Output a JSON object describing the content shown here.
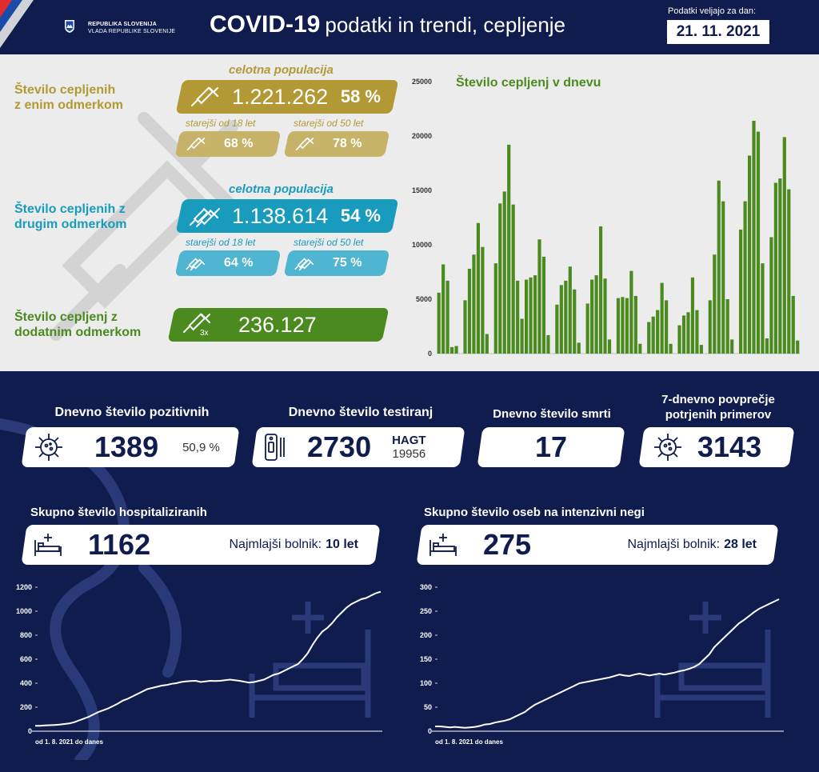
{
  "header": {
    "gov_line1": "REPUBLIKA SLOVENIJA",
    "gov_line2": "VLADA REPUBLIKE SLOVENIJE",
    "title_main": "COVID-19",
    "title_sub": "podatki in trendi, cepljenje",
    "valid_label": "Podatki veljajo za dan:",
    "date": "21. 11. 2021"
  },
  "colors": {
    "navy": "#0f1c4d",
    "gold": "#b39935",
    "blue": "#199bbd",
    "green": "#4b8a1f",
    "light_gray": "#ececec"
  },
  "vaccination": {
    "first_dose": {
      "title_line1": "Število cepljenih",
      "title_line2": "z enim odmerkom",
      "population_label": "celotna populacija",
      "total": "1.221.262",
      "total_pct": "58 %",
      "adult_label": "starejši od 18 let",
      "adult_pct": "68 %",
      "senior_label": "starejši od 50 let",
      "senior_pct": "78 %",
      "icon": "syringe-icon"
    },
    "second_dose": {
      "title_line1": "Število cepljenih z",
      "title_line2": "drugim odmerkom",
      "population_label": "celotna populacija",
      "total": "1.138.614",
      "total_pct": "54 %",
      "adult_label": "starejši od 18 let",
      "adult_pct": "64 %",
      "senior_label": "starejši od 50 let",
      "senior_pct": "75 %",
      "icon": "double-syringe-icon"
    },
    "booster": {
      "title_line1": "Število cepljenj z",
      "title_line2": "dodatnim odmerkom",
      "total": "236.127",
      "icon_badge": "3x",
      "icon": "syringe-icon"
    }
  },
  "stats": {
    "positive": {
      "label": "Dnevno število pozitivnih",
      "value": "1389",
      "pct": "50,9 %",
      "icon": "virus-icon"
    },
    "tests": {
      "label": "Dnevno število testiranj",
      "value": "2730",
      "hagt_label": "HAGT",
      "hagt_value": "19956",
      "icon": "test-kit-icon"
    },
    "deaths": {
      "label": "Dnevno število smrti",
      "value": "17"
    },
    "avg7": {
      "label_line1": "7-dnevno povprečje",
      "label_line2": "potrjenih primerov",
      "value": "3143",
      "icon": "virus-icon"
    }
  },
  "hospital": {
    "label": "Skupno število hospitaliziranih",
    "value": "1162",
    "youngest_label": "Najmlajši bolnik:",
    "youngest_value": "10 let",
    "since_label": "od 1. 8. 2021 do danes",
    "icon": "hospital-bed-icon"
  },
  "icu": {
    "label": "Skupno število oseb na intenzivni negi",
    "value": "275",
    "youngest_label": "Najmlajši bolnik:",
    "youngest_value": "28 let",
    "since_label": "od 1. 8. 2021 do danes",
    "icon": "hospital-bed-icon"
  },
  "chart_data": [
    {
      "type": "bar",
      "title": "Število cepljenj v dnevu",
      "ylim": [
        0,
        25000
      ],
      "yticks": [
        0,
        5000,
        10000,
        15000,
        20000,
        25000
      ],
      "grid": false,
      "values": [
        5600,
        8200,
        6700,
        600,
        700,
        0,
        4900,
        7800,
        9100,
        12000,
        9800,
        1800,
        0,
        8300,
        13800,
        14900,
        19200,
        13700,
        6700,
        3200,
        6800,
        7000,
        7200,
        10500,
        8900,
        1700,
        0,
        4500,
        6300,
        6700,
        8000,
        5900,
        1000,
        0,
        4600,
        6800,
        7200,
        11700,
        6900,
        1300,
        0,
        5100,
        5200,
        5100,
        7600,
        5300,
        900,
        0,
        2900,
        3400,
        4000,
        6500,
        4900,
        900,
        0,
        2600,
        3500,
        3800,
        7000,
        4000,
        800,
        0,
        4900,
        9100,
        15900,
        14000,
        5000,
        1300,
        0,
        11400,
        14000,
        18200,
        21400,
        20400,
        8300,
        1400,
        10700,
        15700,
        16100,
        19900,
        15100,
        5300,
        1200
      ]
    },
    {
      "type": "line",
      "title": "Skupno število hospitaliziranih",
      "xlabel": "od 1. 8. 2021 do danes",
      "ylim": [
        0,
        1200
      ],
      "yticks": [
        0,
        200,
        400,
        600,
        800,
        1000,
        1200
      ],
      "values": [
        45,
        45,
        48,
        50,
        52,
        55,
        60,
        65,
        75,
        90,
        105,
        120,
        140,
        160,
        175,
        190,
        210,
        230,
        255,
        270,
        290,
        310,
        330,
        350,
        360,
        370,
        380,
        385,
        395,
        400,
        410,
        415,
        418,
        420,
        410,
        415,
        420,
        418,
        420,
        425,
        430,
        425,
        420,
        412,
        405,
        410,
        420,
        430,
        450,
        470,
        480,
        500,
        520,
        540,
        560,
        600,
        650,
        720,
        780,
        830,
        860,
        900,
        950,
        990,
        1030,
        1060,
        1080,
        1100,
        1110,
        1130,
        1150,
        1162
      ]
    },
    {
      "type": "line",
      "title": "Skupno število oseb na intenzivni negi",
      "xlabel": "od 1. 8. 2021 do danes",
      "ylim": [
        0,
        300
      ],
      "yticks": [
        0,
        50,
        100,
        150,
        200,
        250,
        300
      ],
      "values": [
        10,
        10,
        9,
        8,
        9,
        8,
        7,
        8,
        9,
        11,
        14,
        15,
        18,
        20,
        22,
        25,
        30,
        35,
        40,
        48,
        55,
        60,
        65,
        70,
        75,
        80,
        85,
        90,
        95,
        100,
        102,
        104,
        106,
        108,
        110,
        112,
        115,
        118,
        116,
        115,
        118,
        120,
        118,
        116,
        118,
        120,
        118,
        120,
        122,
        125,
        127,
        130,
        134,
        140,
        150,
        160,
        175,
        185,
        195,
        205,
        215,
        225,
        232,
        240,
        248,
        255,
        260,
        265,
        270,
        275
      ]
    }
  ]
}
